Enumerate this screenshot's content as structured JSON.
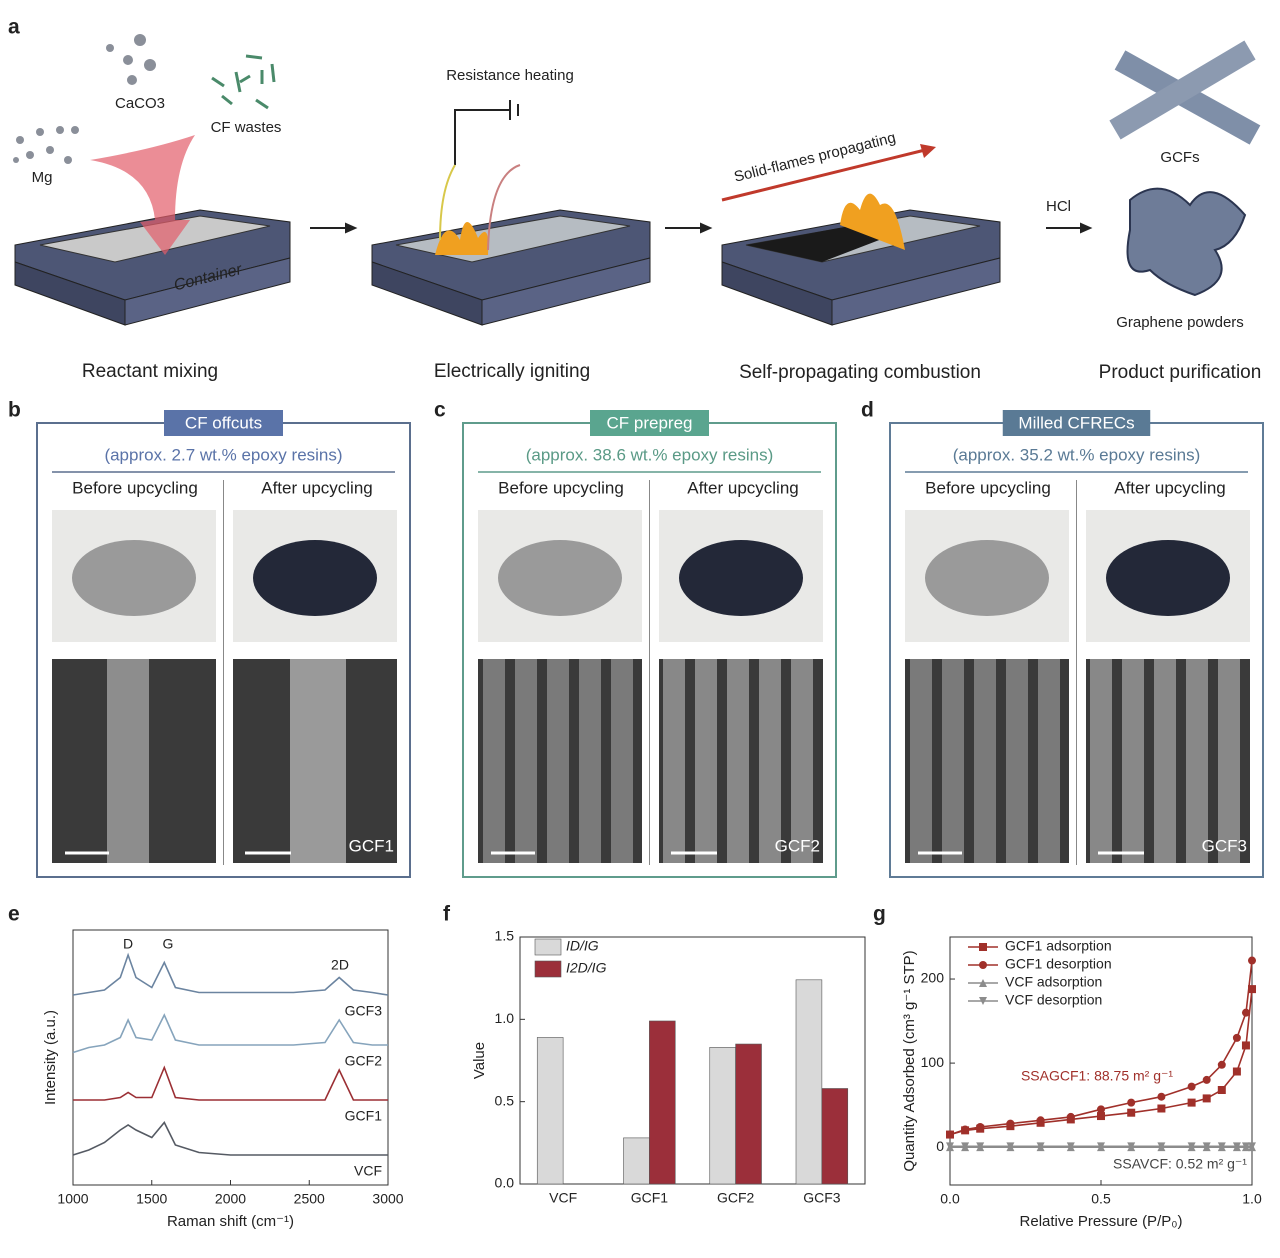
{
  "panel_a": {
    "label": "a",
    "reactants": [
      "Mg",
      "CaCO3",
      "CF wastes"
    ],
    "container": "Container",
    "heating": "Resistance heating",
    "flames": "Solid-flames propagating",
    "acid": "HCl",
    "products": [
      "GCFs",
      "Graphene powders"
    ],
    "steps": [
      "Reactant mixing",
      "Electrically igniting",
      "Self-propagating combustion",
      "Product purification"
    ]
  },
  "samples": [
    {
      "label": "b",
      "title": "CF offcuts",
      "resin": "(approx. 2.7 wt.% epoxy resins)",
      "before": "Before upcycling",
      "after": "After upcycling",
      "product": "GCF1"
    },
    {
      "label": "c",
      "title": "CF prepreg",
      "resin": "(approx. 38.6 wt.% epoxy resins)",
      "before": "Before upcycling",
      "after": "After upcycling",
      "product": "GCF2"
    },
    {
      "label": "d",
      "title": "Milled CFRECs",
      "resin": "(approx. 35.2 wt.% epoxy resins)",
      "before": "Before upcycling",
      "after": "After upcycling",
      "product": "GCF3"
    }
  ],
  "chart_data": [
    {
      "type": "line",
      "panel": "e",
      "xlabel": "Raman shift (cm⁻¹)",
      "ylabel": "Intensity (a.u.)",
      "annotations": [
        "D",
        "G",
        "2D"
      ],
      "x": [
        1000,
        1100,
        1200,
        1300,
        1350,
        1400,
        1500,
        1580,
        1650,
        1800,
        2000,
        2200,
        2400,
        2600,
        2690,
        2780,
        2900,
        3000
      ],
      "xlim": [
        1000,
        3000
      ],
      "xticks": [
        1000,
        1500,
        2000,
        2500,
        3000
      ],
      "ylim": [
        0,
        10.2
      ],
      "series": [
        {
          "name": "GCF3",
          "color": "#6b84a0",
          "values": [
            7.6,
            7.7,
            7.8,
            8.3,
            9.2,
            8.3,
            7.9,
            8.9,
            7.9,
            7.7,
            7.7,
            7.7,
            7.7,
            7.8,
            8.3,
            7.8,
            7.7,
            7.6
          ]
        },
        {
          "name": "GCF2",
          "color": "#86a4bc",
          "values": [
            5.3,
            5.5,
            5.6,
            5.9,
            6.6,
            5.9,
            5.8,
            6.8,
            5.8,
            5.6,
            5.6,
            5.6,
            5.6,
            5.7,
            6.6,
            5.7,
            5.6,
            5.6
          ]
        },
        {
          "name": "GCF1",
          "color": "#9b2f34",
          "values": [
            3.4,
            3.4,
            3.4,
            3.5,
            3.7,
            3.5,
            3.5,
            4.7,
            3.5,
            3.4,
            3.4,
            3.4,
            3.4,
            3.4,
            4.6,
            3.4,
            3.4,
            3.4
          ]
        },
        {
          "name": "VCF",
          "color": "#555a63",
          "values": [
            1.2,
            1.4,
            1.7,
            2.2,
            2.4,
            2.2,
            1.9,
            2.5,
            1.6,
            1.3,
            1.2,
            1.2,
            1.2,
            1.2,
            1.2,
            1.2,
            1.2,
            1.2
          ]
        }
      ]
    },
    {
      "type": "bar",
      "panel": "f",
      "ylabel": "Value",
      "categories": [
        "VCF",
        "GCF1",
        "GCF2",
        "GCF3"
      ],
      "ylim": [
        0,
        1.5
      ],
      "yticks": [
        {
          "value": 0,
          "label": "0.0"
        },
        0.5,
        {
          "value": 1,
          "label": "1.0"
        },
        1.5
      ],
      "legend": "top-left",
      "series": [
        {
          "name": "ID/IG",
          "color": "#d9d9d9",
          "values": [
            0.89,
            0.28,
            0.83,
            1.24
          ]
        },
        {
          "name": "I2D/IG",
          "color": "#9b2f3a",
          "values": [
            0,
            0.99,
            0.85,
            0.58
          ]
        }
      ]
    },
    {
      "type": "line",
      "panel": "g",
      "xlabel": "Relative Pressure (P/P₀)",
      "ylabel": "Quantity Adsorbed (cm³ g⁻¹ STP)",
      "annotations": [
        "SSAGCF1: 88.75 m² g⁻¹",
        "SSAVCF: 0.52 m² g⁻¹"
      ],
      "x": [
        0,
        0.05,
        0.1,
        0.2,
        0.3,
        0.4,
        0.5,
        0.6,
        0.7,
        0.8,
        0.85,
        0.9,
        0.95,
        0.98,
        1.0
      ],
      "xlim": [
        0,
        1
      ],
      "xticks": [
        {
          "value": 0,
          "label": "0.0"
        },
        0.5,
        {
          "value": 1,
          "label": "1.0"
        }
      ],
      "ylim": [
        -45,
        250
      ],
      "yticks": [
        0,
        100,
        200
      ],
      "legend": "top-left",
      "series": [
        {
          "name": "GCF1 adsorption",
          "color": "#a0302a",
          "marker": "square",
          "values": [
            15,
            20,
            22,
            25,
            29,
            33,
            37,
            41,
            46,
            53,
            58,
            68,
            90,
            121,
            188
          ]
        },
        {
          "name": "GCF1 desorption",
          "color": "#a0302a",
          "marker": "circle",
          "values": [
            15,
            21,
            24,
            28,
            32,
            36,
            45,
            53,
            60,
            72,
            80,
            98,
            130,
            160,
            222
          ]
        },
        {
          "name": "VCF adsorption",
          "color": "#8c8c8c",
          "marker": "triangle",
          "values": [
            0,
            0,
            0,
            0,
            0,
            0,
            0,
            0,
            0,
            0,
            0,
            0,
            0,
            0,
            0
          ]
        },
        {
          "name": "VCF desorption",
          "color": "#8c8c8c",
          "marker": "triangle-down",
          "values": [
            1,
            1,
            1,
            1,
            1,
            1,
            1,
            1,
            1,
            1,
            1,
            1,
            1,
            1,
            1
          ]
        }
      ]
    }
  ]
}
